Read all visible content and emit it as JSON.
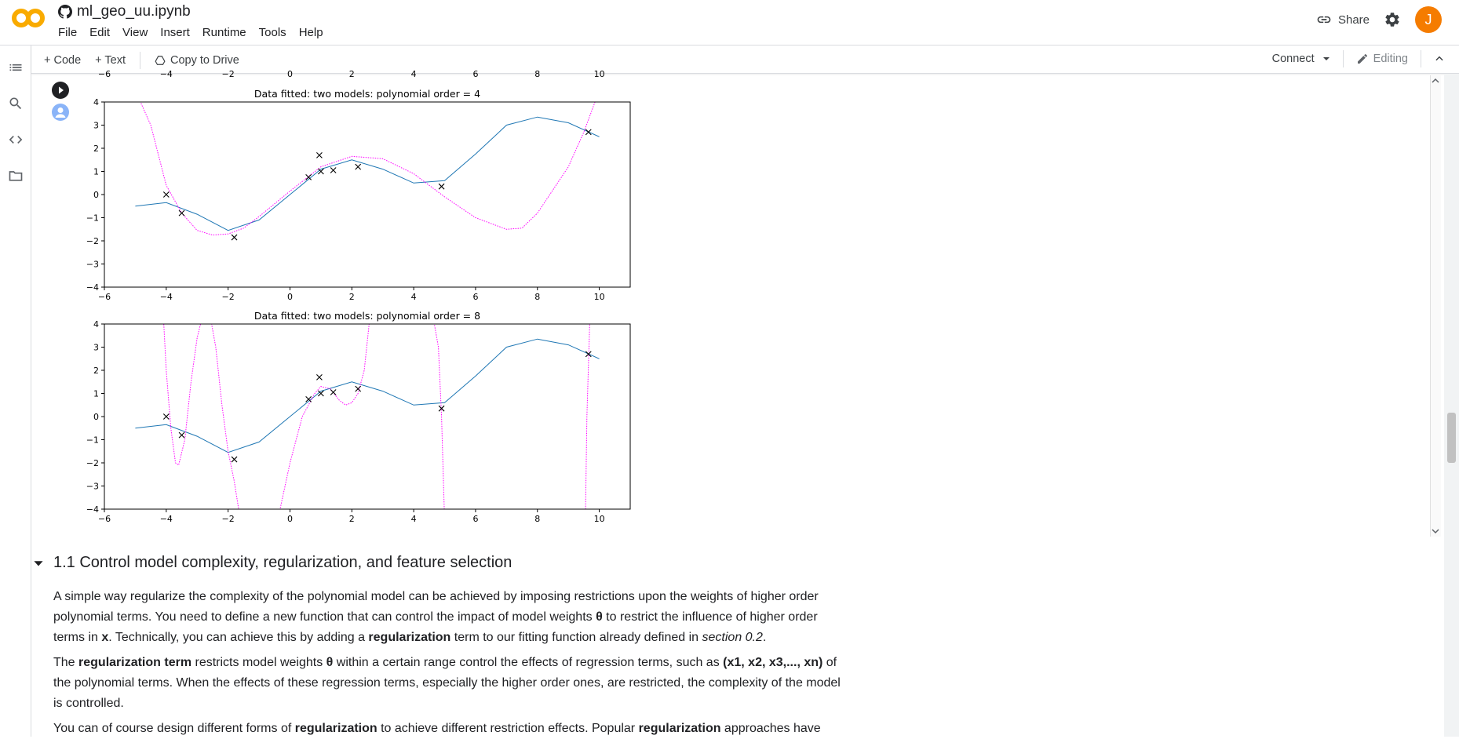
{
  "header": {
    "title": "ml_geo_uu.ipynb",
    "menu": [
      "File",
      "Edit",
      "View",
      "Insert",
      "Runtime",
      "Tools",
      "Help"
    ],
    "share_label": "Share",
    "avatar_letter": "J"
  },
  "toolbar": {
    "code_label": "+ Code",
    "text_label": "+ Text",
    "copy_label": "Copy to Drive",
    "connect_label": "Connect",
    "editing_label": "Editing"
  },
  "top_axis_ticks": [
    "−6",
    "−4",
    "−2",
    "0",
    "2",
    "4",
    "6",
    "8",
    "10"
  ],
  "chart_data": [
    {
      "type": "line",
      "title": "Data fitted: two models: polynomial order = 4",
      "xlim": [
        -6,
        11
      ],
      "ylim": [
        -4,
        4
      ],
      "xticks": [
        -6,
        -4,
        -2,
        0,
        2,
        4,
        6,
        8,
        10
      ],
      "yticks": [
        -4,
        -3,
        -2,
        -1,
        0,
        1,
        2,
        3,
        4
      ],
      "points": [
        [
          -4.0,
          0.0
        ],
        [
          -3.5,
          -0.8
        ],
        [
          -1.8,
          -1.85
        ],
        [
          0.6,
          0.75
        ],
        [
          0.95,
          1.7
        ],
        [
          1.0,
          1.0
        ],
        [
          1.4,
          1.05
        ],
        [
          2.2,
          1.2
        ],
        [
          4.9,
          0.35
        ],
        [
          9.65,
          2.7
        ]
      ],
      "series": [
        {
          "color": "#1f77b4",
          "style": "solid",
          "x": [
            -5,
            -4,
            -3,
            -2,
            -1,
            0,
            1,
            2,
            3,
            4,
            5,
            6,
            7,
            8,
            9,
            10
          ],
          "y": [
            -0.5,
            -0.35,
            -0.85,
            -1.55,
            -1.1,
            0.0,
            1.1,
            1.5,
            1.1,
            0.5,
            0.6,
            1.75,
            3.0,
            3.35,
            3.1,
            2.5
          ]
        },
        {
          "color": "#ff00ff",
          "style": "dotted",
          "x": [
            -5,
            -4.5,
            -4,
            -3.5,
            -3,
            -2.5,
            -2,
            -1.5,
            -1,
            0,
            1,
            2,
            3,
            4,
            5,
            6,
            7,
            7.5,
            8,
            9,
            9.5,
            10
          ],
          "y": [
            4.5,
            3.0,
            0.4,
            -0.8,
            -1.55,
            -1.75,
            -1.7,
            -1.45,
            -0.95,
            0.15,
            1.2,
            1.65,
            1.55,
            0.9,
            -0.1,
            -1.0,
            -1.5,
            -1.45,
            -0.8,
            1.2,
            2.7,
            4.5
          ]
        }
      ]
    },
    {
      "type": "line",
      "title": "Data fitted: two models: polynomial order = 8",
      "xlim": [
        -6,
        11
      ],
      "ylim": [
        -4,
        4
      ],
      "xticks": [
        -6,
        -4,
        -2,
        0,
        2,
        4,
        6,
        8,
        10
      ],
      "yticks": [
        -4,
        -3,
        -2,
        -1,
        0,
        1,
        2,
        3,
        4
      ],
      "points": [
        [
          -4.0,
          0.0
        ],
        [
          -3.5,
          -0.8
        ],
        [
          -1.8,
          -1.85
        ],
        [
          0.6,
          0.75
        ],
        [
          0.95,
          1.7
        ],
        [
          1.0,
          1.0
        ],
        [
          1.4,
          1.05
        ],
        [
          2.2,
          1.2
        ],
        [
          4.9,
          0.35
        ],
        [
          9.65,
          2.7
        ]
      ],
      "series": [
        {
          "color": "#1f77b4",
          "style": "solid",
          "x": [
            -5,
            -4,
            -3,
            -2,
            -1,
            0,
            1,
            2,
            3,
            4,
            5,
            6,
            7,
            8,
            9,
            10
          ],
          "y": [
            -0.5,
            -0.35,
            -0.85,
            -1.55,
            -1.1,
            0.0,
            1.1,
            1.5,
            1.1,
            0.5,
            0.6,
            1.75,
            3.0,
            3.35,
            3.1,
            2.5
          ]
        },
        {
          "color": "#ff00ff",
          "style": "dotted",
          "x": [
            -4.1,
            -4.0,
            -3.85,
            -3.7,
            -3.6,
            -3.4,
            -3.2,
            -3.0,
            -2.8,
            -2.6,
            -2.4,
            -2.2,
            -2.0,
            -1.8,
            -1.6,
            -0.4,
            0.0,
            0.4,
            0.8,
            1.0,
            1.3,
            1.6,
            1.8,
            2.0,
            2.2,
            2.4,
            2.6,
            4.6,
            4.8,
            4.9,
            5.0,
            5.2,
            9.55,
            9.6,
            9.7
          ],
          "y": [
            4.5,
            2.0,
            -0.5,
            -2.0,
            -2.1,
            -1.0,
            1.5,
            3.4,
            4.5,
            4.5,
            3.0,
            0.5,
            -1.5,
            -2.8,
            -4.5,
            -4.5,
            -2.0,
            0.0,
            1.0,
            1.3,
            1.2,
            0.7,
            0.5,
            0.6,
            1.0,
            2.0,
            4.5,
            4.5,
            3.0,
            0.0,
            -4.5,
            -4.5,
            -4.5,
            0.0,
            4.5
          ]
        }
      ]
    }
  ],
  "section": {
    "title": "1.1 Control model complexity, regularization, and feature selection",
    "p1": "A simple way regularize the complexity of the polynomial model can be achieved by imposing restrictions upon the weights of higher order polynomial terms. You need to define a new function that can control the impact of model weights θ to restrict the influence of higher order terms in x. Technically, you can achieve this by adding a regularization term to our fitting function already defined in section 0.2.",
    "p2": "The regularization term restricts model weights θ within a certain range control the effects of regression terms, such as (x1, x2, x3,..., xn) of the polynomial terms. When the effects of these regression terms, especially the higher order ones, are restricted, the complexity of the model is controlled.",
    "p3": "You can of course design different forms of regularization to achieve different restriction effects. Popular regularization approaches have"
  }
}
